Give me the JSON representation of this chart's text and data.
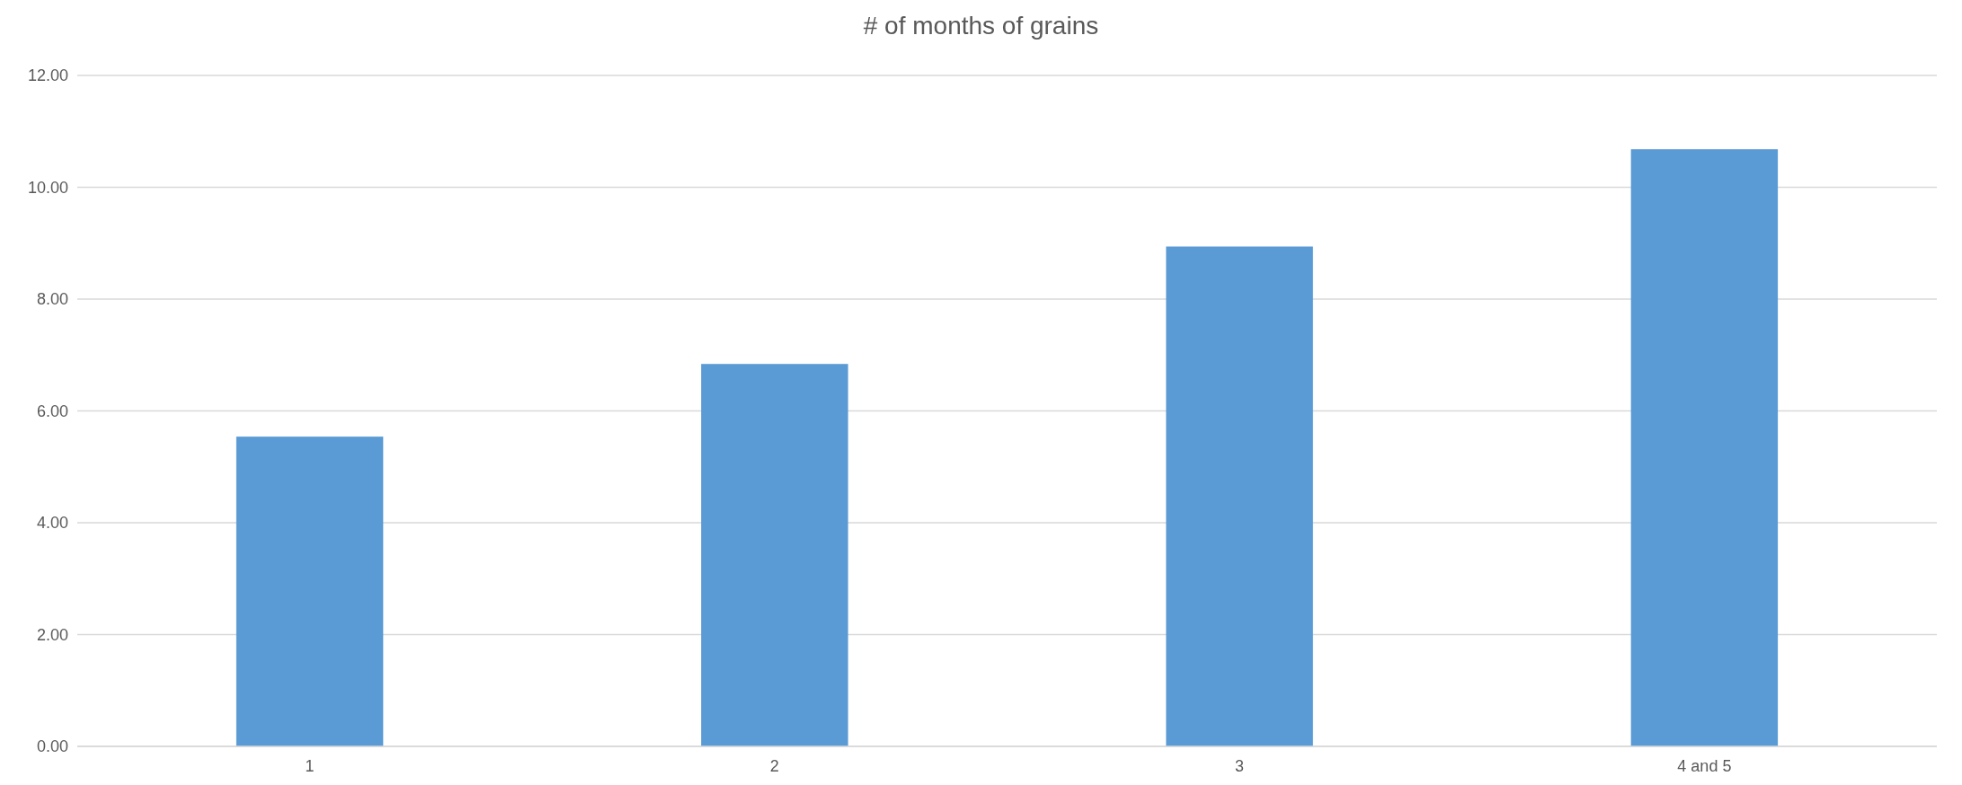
{
  "chart_data": {
    "type": "bar",
    "title": "# of months of grains",
    "categories": [
      "1",
      "2",
      "3",
      "4 and 5"
    ],
    "values": [
      5.54,
      6.84,
      8.94,
      10.68
    ],
    "color": "#5b9bd5",
    "ylim": [
      0,
      12
    ],
    "yticks": [
      {
        "value": 0,
        "label": "0.00"
      },
      {
        "value": 2,
        "label": "2.00"
      },
      {
        "value": 4,
        "label": "4.00"
      },
      {
        "value": 6,
        "label": "6.00"
      },
      {
        "value": 8,
        "label": "8.00"
      },
      {
        "value": 10,
        "label": "10.00"
      },
      {
        "value": 12,
        "label": "12.00"
      }
    ],
    "grid": "y"
  }
}
